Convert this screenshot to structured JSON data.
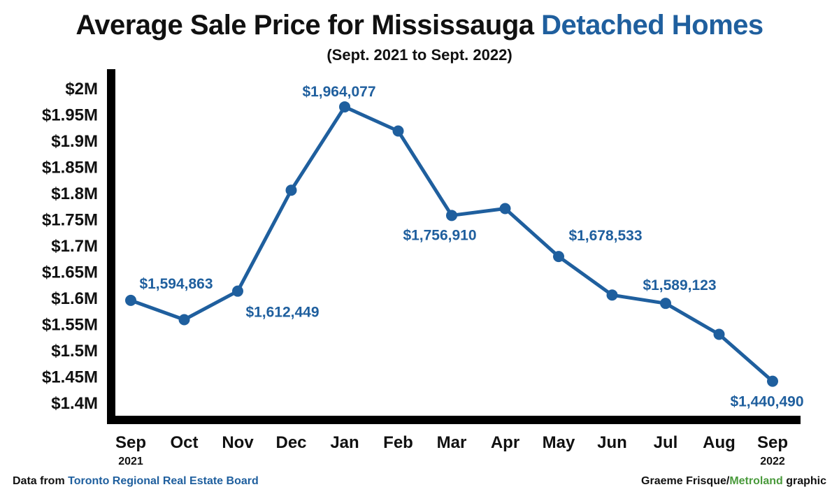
{
  "header": {
    "title_main": "Average Sale Price for Mississauga ",
    "title_accent": "Detached Homes",
    "subtitle": "(Sept. 2021 to Sept. 2022)"
  },
  "footer": {
    "source_prefix": "Data from ",
    "source_name": "Toronto Regional Real Estate Board",
    "credit_author": "Graeme Frisque/",
    "credit_org": "Metroland",
    "credit_suffix": " graphic"
  },
  "colors": {
    "line": "#1f5f9e",
    "axis": "#000000",
    "accent": "#1f5f9e",
    "org": "#4a9a3c"
  },
  "chart_data": {
    "type": "line",
    "title": "Average Sale Price for Mississauga Detached Homes",
    "subtitle": "(Sept. 2021 to Sept. 2022)",
    "categories": [
      "Sep",
      "Oct",
      "Nov",
      "Dec",
      "Jan",
      "Feb",
      "Mar",
      "Apr",
      "May",
      "Jun",
      "Jul",
      "Aug",
      "Sep"
    ],
    "category_sublabels": [
      "2021",
      "",
      "",
      "",
      "",
      "",
      "",
      "",
      "",
      "",
      "",
      "",
      "2022"
    ],
    "values": [
      1594863,
      1558000,
      1612449,
      1805000,
      1964077,
      1918000,
      1756910,
      1770000,
      1678533,
      1605000,
      1589123,
      1530000,
      1440490
    ],
    "data_labels": [
      "$1,594,863",
      "",
      "$1,612,449",
      "",
      "$1,964,077",
      "",
      "$1,756,910",
      "",
      "$1,678,533",
      "",
      "$1,589,123",
      "",
      "$1,440,490"
    ],
    "yticks": [
      1400000,
      1450000,
      1500000,
      1550000,
      1600000,
      1650000,
      1700000,
      1750000,
      1800000,
      1850000,
      1900000,
      1950000,
      2000000
    ],
    "ytick_labels": [
      "$1.4M",
      "$1.45M",
      "$1.5M",
      "$1.55M",
      "$1.6M",
      "$1.65M",
      "$1.7M",
      "$1.75M",
      "$1.8M",
      "$1.85M",
      "$1.9M",
      "$1.95M",
      "$2M"
    ],
    "ylim": [
      1400000,
      2000000
    ],
    "grid": false,
    "legend": "none"
  }
}
